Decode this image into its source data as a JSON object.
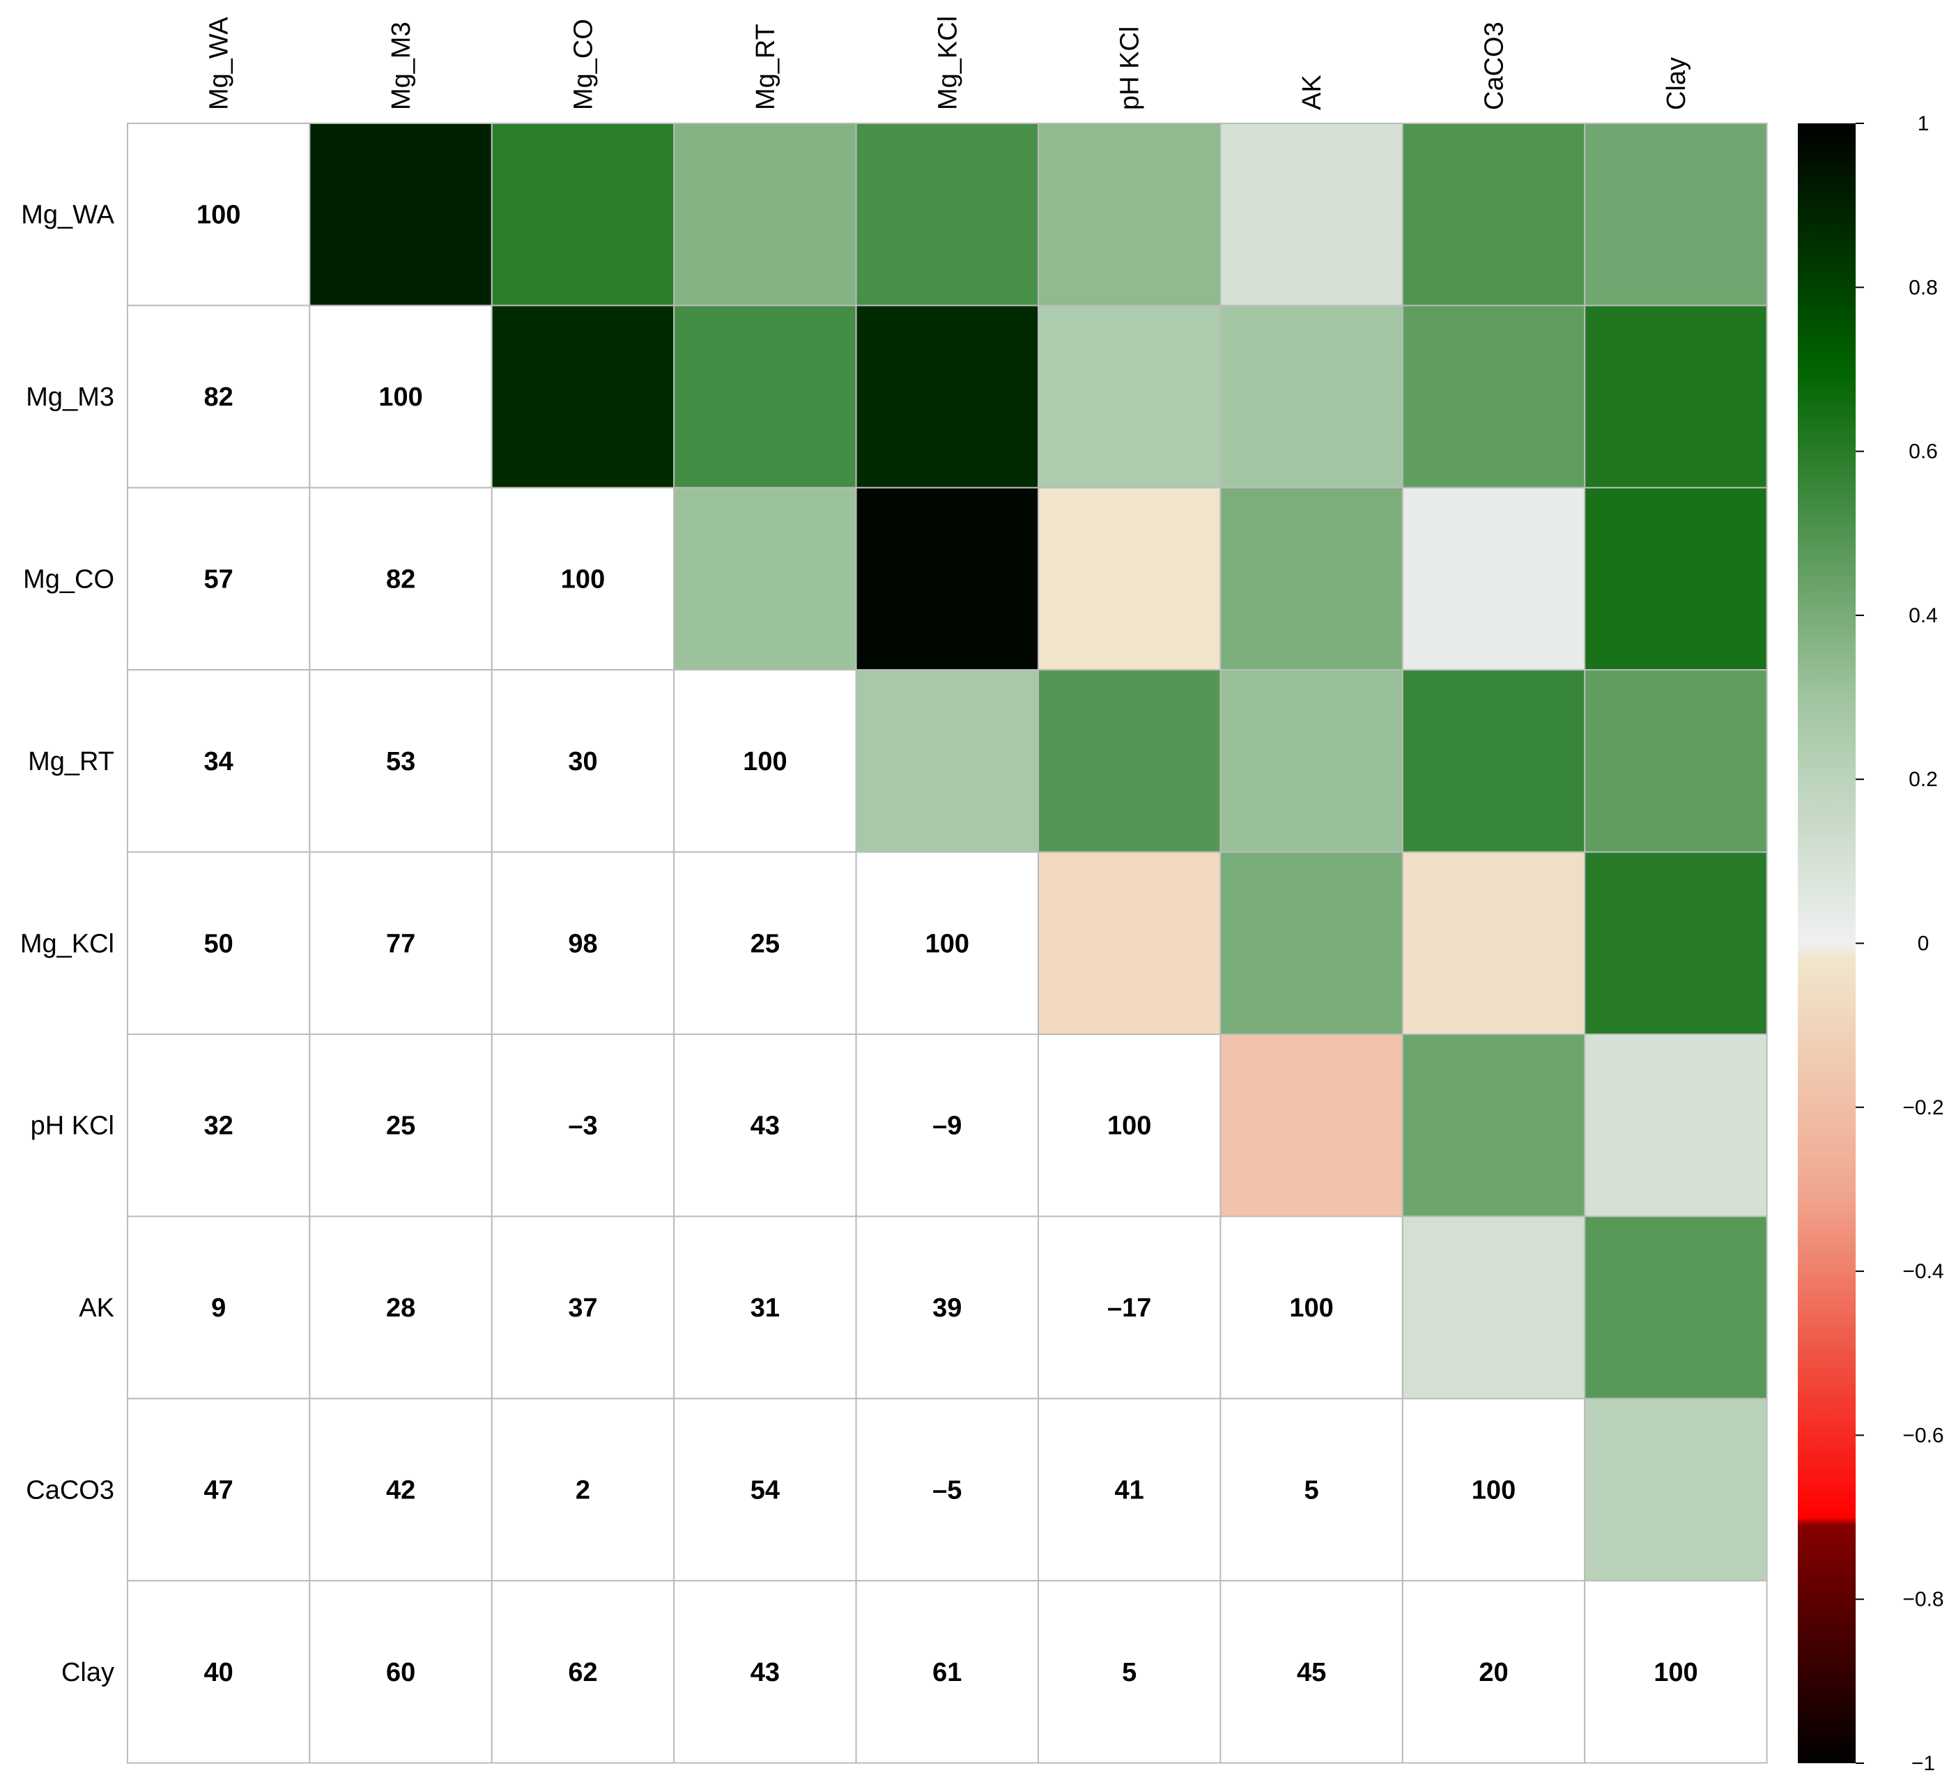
{
  "chart_data": {
    "type": "heatmap",
    "variables": [
      "Mg_WA",
      "Mg_M3",
      "Mg_CO",
      "Mg_RT",
      "Mg_KCl",
      "pH  KCl",
      "AK",
      "CaCO3",
      "Clay"
    ],
    "lower_labels": [
      [
        "100"
      ],
      [
        "82",
        "100"
      ],
      [
        "57",
        "82",
        "100"
      ],
      [
        "34",
        "53",
        "30",
        "100"
      ],
      [
        "50",
        "77",
        "98",
        "25",
        "100"
      ],
      [
        "32",
        "25",
        "–3",
        "43",
        "–9",
        "100"
      ],
      [
        "9",
        "28",
        "37",
        "31",
        "39",
        "–17",
        "100"
      ],
      [
        "47",
        "42",
        "2",
        "54",
        "–5",
        "41",
        "5",
        "100"
      ],
      [
        "40",
        "60",
        "62",
        "43",
        "61",
        "5",
        "45",
        "20",
        "100"
      ]
    ],
    "upper_values": [
      [
        null,
        0.9,
        0.59,
        0.37,
        0.52,
        0.34,
        0.1,
        0.5,
        0.42
      ],
      [
        null,
        null,
        0.87,
        0.53,
        0.87,
        0.25,
        0.29,
        0.46,
        0.62
      ],
      [
        null,
        null,
        null,
        0.31,
        0.98,
        -0.03,
        0.39,
        0.03,
        0.64
      ],
      [
        null,
        null,
        null,
        null,
        0.27,
        0.49,
        0.32,
        0.56,
        0.46
      ],
      [
        null,
        null,
        null,
        null,
        null,
        -0.08,
        0.4,
        -0.05,
        0.6
      ],
      [
        null,
        null,
        null,
        null,
        null,
        null,
        -0.18,
        0.43,
        0.1
      ],
      [
        null,
        null,
        null,
        null,
        null,
        null,
        null,
        0.11,
        0.48
      ],
      [
        null,
        null,
        null,
        null,
        null,
        null,
        null,
        null,
        0.21
      ]
    ],
    "colorbar": {
      "ticks": [
        "1",
        "0.8",
        "0.6",
        "0.4",
        "0.2",
        "0",
        "−0.2",
        "−0.4",
        "−0.6",
        "−0.8",
        "−1"
      ],
      "range": [
        -1,
        1
      ]
    },
    "colors": {
      "top": "#000000",
      "dark_green": "#006400",
      "zero": "#f0e6cc",
      "mid_red": "#ee5544",
      "red": "#ff0000",
      "dark_red": "#8b0000",
      "bottom": "#000000",
      "grid": "#bbbbbb"
    },
    "grid": true
  }
}
